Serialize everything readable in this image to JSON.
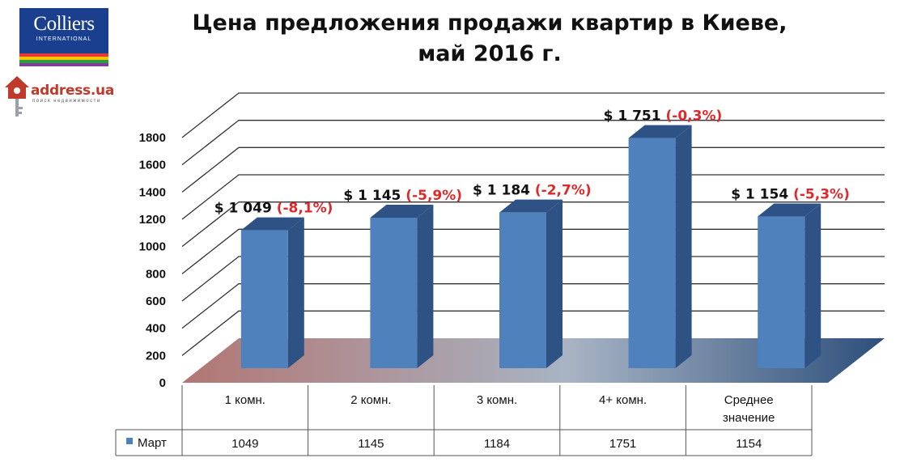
{
  "title": {
    "line1": "Цена предложения продажи квартир в Киеве,",
    "line2": "май 2016 г."
  },
  "logos": {
    "colliers": {
      "brand": "Colliers",
      "sub": "INTERNATIONAL",
      "stripes": [
        "#e53935",
        "#f6c500",
        "#2e9e45",
        "#7d3f98"
      ]
    },
    "address": {
      "text": "address.ua",
      "tagline": "поиск недвижимости",
      "icon": "house-key-icon",
      "color": "#c0392b"
    }
  },
  "chart_data": {
    "type": "bar",
    "categories": [
      "1 комн.",
      "2 комн.",
      "3 комн.",
      "4+ комн.",
      "Среднее значение"
    ],
    "category_lines": [
      [
        "1 комн."
      ],
      [
        "2 комн."
      ],
      [
        "3 комн."
      ],
      [
        "4+ комн."
      ],
      [
        "Среднее",
        "значение"
      ]
    ],
    "series": [
      {
        "name": "Март",
        "values": [
          1049,
          1145,
          1184,
          1751,
          1154
        ],
        "color": "#4f81bd"
      }
    ],
    "data_labels": [
      {
        "price": "$ 1 049",
        "change": "(-8,1%)"
      },
      {
        "price": "$  1 145",
        "change": "(-5,9%)"
      },
      {
        "price": "$  1 184",
        "change": "(-2,7%)"
      },
      {
        "price": "$ 1 751",
        "change": "(-0,3%)"
      },
      {
        "price": "$ 1 154",
        "change": "(-5,3%)"
      }
    ],
    "y_ticks": [
      0,
      200,
      400,
      600,
      800,
      1000,
      1200,
      1400,
      1600,
      1800
    ],
    "ylim": [
      0,
      1800
    ],
    "grid": true,
    "style": "3d-column",
    "data_table": {
      "legend_label": "Март",
      "values": [
        "1049",
        "1145",
        "1184",
        "1751",
        "1154"
      ]
    },
    "colors": {
      "bar_front": "#4f81bd",
      "bar_top": "#2e5286",
      "bar_side": "#2f5284",
      "floor_left": "#b27673",
      "floor_mid": "#a8b4c4",
      "floor_right": "#2d4f7c"
    }
  }
}
